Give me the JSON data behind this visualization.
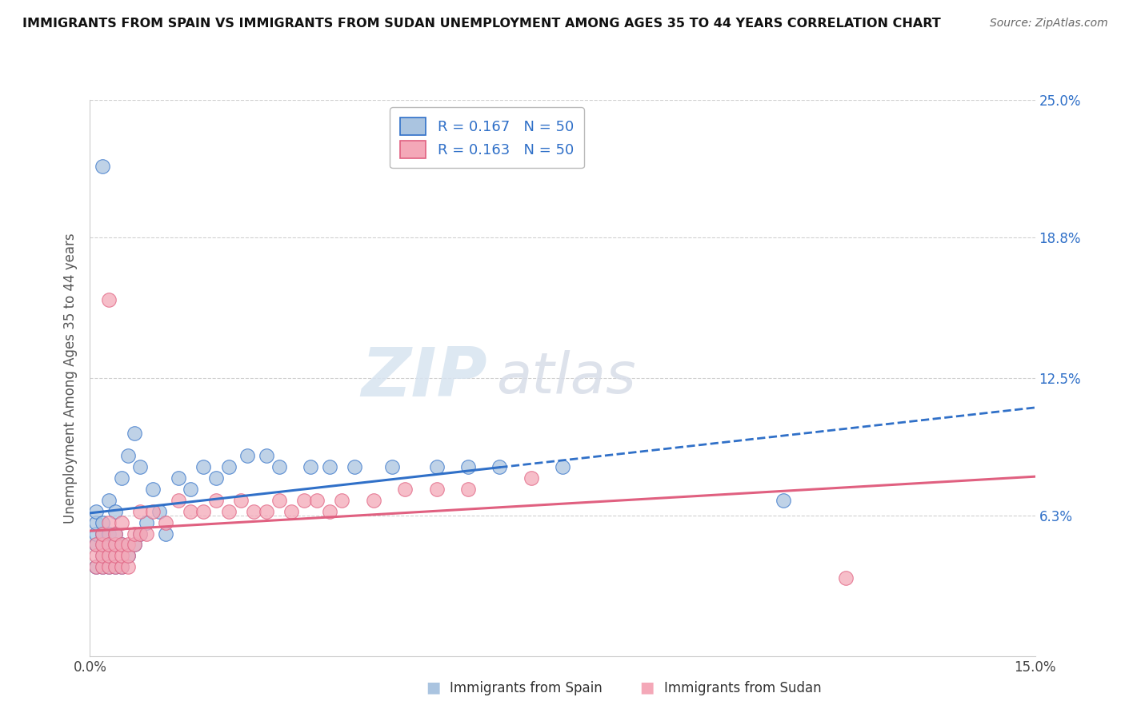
{
  "title": "IMMIGRANTS FROM SPAIN VS IMMIGRANTS FROM SUDAN UNEMPLOYMENT AMONG AGES 35 TO 44 YEARS CORRELATION CHART",
  "source": "Source: ZipAtlas.com",
  "ylabel": "Unemployment Among Ages 35 to 44 years",
  "xlim": [
    0.0,
    0.15
  ],
  "ylim": [
    0.0,
    0.25
  ],
  "xticks": [
    0.0,
    0.15
  ],
  "xticklabels": [
    "0.0%",
    "15.0%"
  ],
  "yticks": [
    0.063,
    0.125,
    0.188,
    0.25
  ],
  "yticklabels": [
    "6.3%",
    "12.5%",
    "18.8%",
    "25.0%"
  ],
  "r_spain": 0.167,
  "n_spain": 50,
  "r_sudan": 0.163,
  "n_sudan": 50,
  "spain_color": "#aac4e0",
  "sudan_color": "#f4a8b8",
  "spain_line_color": "#3070c8",
  "sudan_line_color": "#e06080",
  "watermark_zip": "ZIP",
  "watermark_atlas": "atlas",
  "spain_scatter_x": [
    0.001,
    0.001,
    0.001,
    0.001,
    0.001,
    0.002,
    0.002,
    0.002,
    0.002,
    0.002,
    0.003,
    0.003,
    0.003,
    0.003,
    0.003,
    0.004,
    0.004,
    0.004,
    0.004,
    0.005,
    0.005,
    0.005,
    0.006,
    0.006,
    0.007,
    0.007,
    0.008,
    0.008,
    0.009,
    0.01,
    0.011,
    0.012,
    0.014,
    0.016,
    0.018,
    0.02,
    0.022,
    0.025,
    0.028,
    0.03,
    0.035,
    0.038,
    0.042,
    0.048,
    0.055,
    0.06,
    0.065,
    0.075,
    0.11,
    0.002
  ],
  "spain_scatter_y": [
    0.04,
    0.05,
    0.055,
    0.06,
    0.065,
    0.04,
    0.045,
    0.05,
    0.055,
    0.06,
    0.04,
    0.045,
    0.05,
    0.055,
    0.07,
    0.04,
    0.05,
    0.055,
    0.065,
    0.04,
    0.05,
    0.08,
    0.045,
    0.09,
    0.05,
    0.1,
    0.055,
    0.085,
    0.06,
    0.075,
    0.065,
    0.055,
    0.08,
    0.075,
    0.085,
    0.08,
    0.085,
    0.09,
    0.09,
    0.085,
    0.085,
    0.085,
    0.085,
    0.085,
    0.085,
    0.085,
    0.085,
    0.085,
    0.07,
    0.22
  ],
  "sudan_scatter_x": [
    0.001,
    0.001,
    0.001,
    0.002,
    0.002,
    0.002,
    0.002,
    0.003,
    0.003,
    0.003,
    0.003,
    0.004,
    0.004,
    0.004,
    0.004,
    0.005,
    0.005,
    0.005,
    0.005,
    0.006,
    0.006,
    0.006,
    0.007,
    0.007,
    0.008,
    0.008,
    0.009,
    0.01,
    0.012,
    0.014,
    0.016,
    0.018,
    0.02,
    0.022,
    0.024,
    0.026,
    0.028,
    0.03,
    0.032,
    0.034,
    0.036,
    0.038,
    0.04,
    0.045,
    0.05,
    0.055,
    0.06,
    0.07,
    0.12,
    0.003
  ],
  "sudan_scatter_y": [
    0.04,
    0.045,
    0.05,
    0.04,
    0.045,
    0.05,
    0.055,
    0.04,
    0.045,
    0.05,
    0.06,
    0.04,
    0.045,
    0.05,
    0.055,
    0.04,
    0.045,
    0.05,
    0.06,
    0.04,
    0.045,
    0.05,
    0.05,
    0.055,
    0.055,
    0.065,
    0.055,
    0.065,
    0.06,
    0.07,
    0.065,
    0.065,
    0.07,
    0.065,
    0.07,
    0.065,
    0.065,
    0.07,
    0.065,
    0.07,
    0.07,
    0.065,
    0.07,
    0.07,
    0.075,
    0.075,
    0.075,
    0.08,
    0.035,
    0.16
  ]
}
